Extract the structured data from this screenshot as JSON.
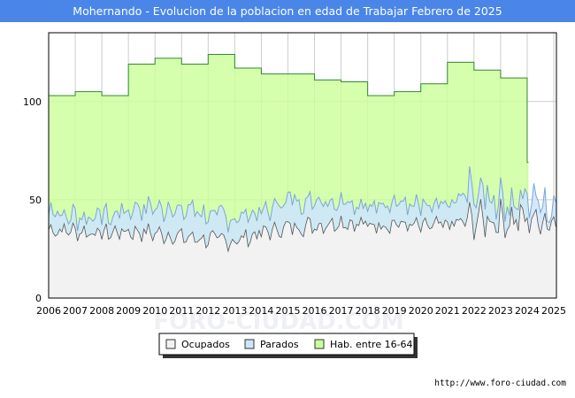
{
  "chart_data": {
    "type": "area",
    "title": "Mohernando - Evolucion de la poblacion en edad de Trabajar Febrero de 2025",
    "x_ticks": [
      "2006",
      "2007",
      "2008",
      "2009",
      "2010",
      "2011",
      "2012",
      "2013",
      "2014",
      "2015",
      "2016",
      "2017",
      "2018",
      "2019",
      "2020",
      "2021",
      "2022",
      "2023",
      "2024",
      "2025"
    ],
    "y_ticks": [
      0,
      50,
      100
    ],
    "xlim": [
      2006,
      2025.1
    ],
    "ylim": [
      0,
      135
    ],
    "series": [
      {
        "name": "Hab. entre 16-64",
        "color": "#ccff99",
        "points": [
          [
            2006,
            103
          ],
          [
            2007,
            105
          ],
          [
            2008,
            103
          ],
          [
            2009,
            119
          ],
          [
            2010,
            122
          ],
          [
            2011,
            119
          ],
          [
            2012,
            124
          ],
          [
            2013,
            117
          ],
          [
            2014,
            114
          ],
          [
            2015,
            114
          ],
          [
            2016,
            111
          ],
          [
            2017,
            110
          ],
          [
            2018,
            103
          ],
          [
            2019,
            105
          ],
          [
            2020,
            109
          ],
          [
            2021,
            120
          ],
          [
            2022,
            116
          ],
          [
            2023,
            112
          ],
          [
            2024,
            69
          ]
        ],
        "end_year": 2024.05
      },
      {
        "name": "Parados",
        "color": "#cce5ff",
        "yearly_levels": [
          [
            2006,
            10
          ],
          [
            2007,
            8
          ],
          [
            2008,
            8
          ],
          [
            2009,
            11
          ],
          [
            2010,
            13
          ],
          [
            2011,
            14
          ],
          [
            2012,
            13
          ],
          [
            2013,
            12
          ],
          [
            2014,
            12
          ],
          [
            2015,
            13
          ],
          [
            2016,
            13
          ],
          [
            2017,
            12
          ],
          [
            2018,
            10
          ],
          [
            2019,
            11
          ],
          [
            2020,
            10
          ],
          [
            2021,
            11
          ],
          [
            2022,
            13
          ],
          [
            2023,
            10
          ],
          [
            2024,
            11
          ],
          [
            2025,
            8
          ]
        ]
      },
      {
        "name": "Ocupados",
        "color": "#f2f2f2",
        "yearly_levels": [
          [
            2006,
            35
          ],
          [
            2007,
            34
          ],
          [
            2008,
            33
          ],
          [
            2009,
            34
          ],
          [
            2010,
            33
          ],
          [
            2011,
            31
          ],
          [
            2012,
            30
          ],
          [
            2013,
            29
          ],
          [
            2014,
            33
          ],
          [
            2015,
            36
          ],
          [
            2016,
            37
          ],
          [
            2017,
            39
          ],
          [
            2018,
            37
          ],
          [
            2019,
            38
          ],
          [
            2020,
            36
          ],
          [
            2021,
            37
          ],
          [
            2022,
            40
          ],
          [
            2023,
            40
          ],
          [
            2024,
            40
          ],
          [
            2025,
            40
          ]
        ]
      }
    ],
    "legend": [
      "Ocupados",
      "Parados",
      "Hab. entre 16-64"
    ],
    "legend_position": "bottom-center"
  },
  "watermark": "FORO-CIUDAD.COM",
  "source_url": "http://www.foro-ciudad.com"
}
